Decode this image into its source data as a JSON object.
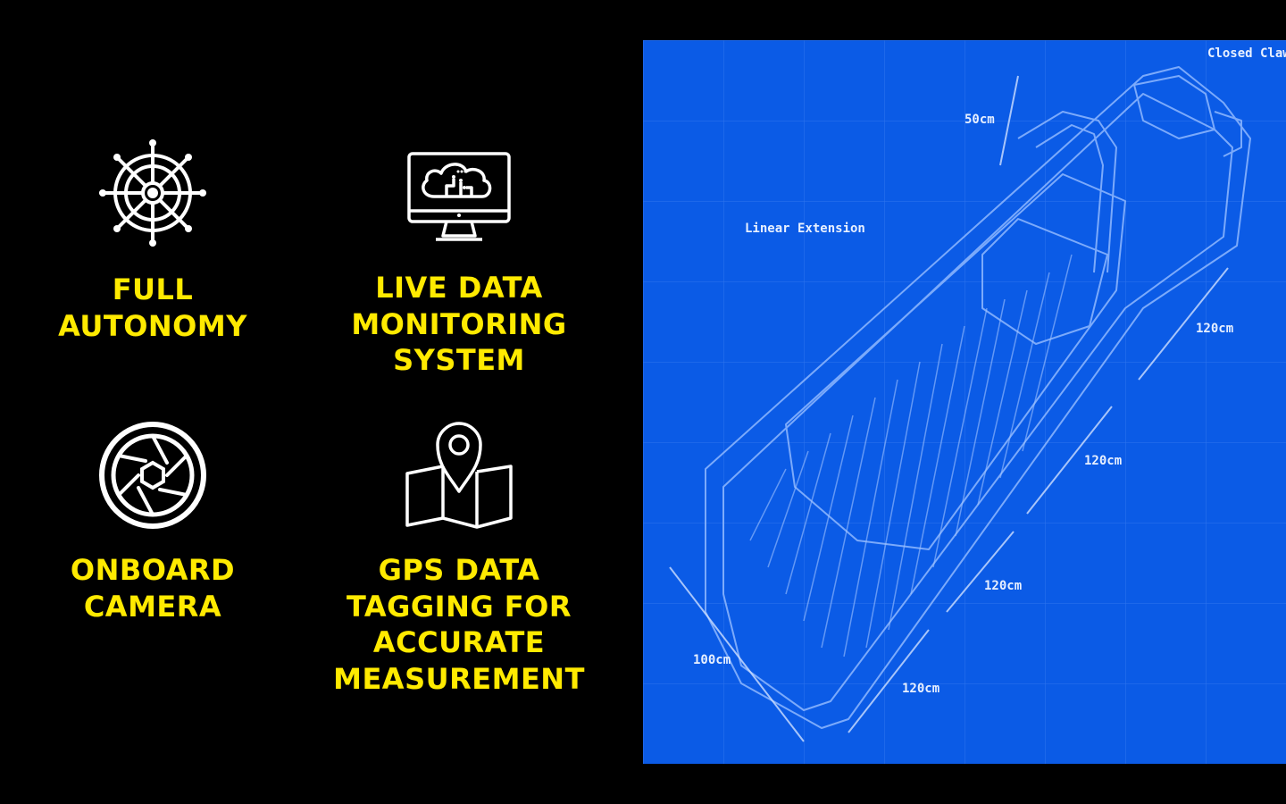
{
  "features": [
    {
      "label_line1": "FULL",
      "label_line2": "AUTONOMY",
      "icon": "ship-wheel-icon"
    },
    {
      "label_line1": "LIVE DATA",
      "label_line2": "MONITORING",
      "label_line3": "SYSTEM",
      "icon": "cloud-monitor-icon"
    },
    {
      "label_line1": "ONBOARD",
      "label_line2": "CAMERA",
      "icon": "camera-aperture-icon"
    },
    {
      "label_line1": "GPS DATA",
      "label_line2": "TAGGING FOR",
      "label_line3": "ACCURATE",
      "label_line4": "MEASUREMENT",
      "icon": "map-pin-icon"
    }
  ],
  "blueprint": {
    "closed_claws": "Closed Claws",
    "dim_50": "50cm",
    "linear_extension": "Linear Extension",
    "dim_120_a": "120cm",
    "dim_120_b": "120cm",
    "dim_120_c": "120cm",
    "dim_120_d": "120cm",
    "dim_100": "100cm"
  },
  "colors": {
    "background": "#000000",
    "accent": "#ffea00",
    "blueprint": "#0b5be6",
    "line": "#cfe0ff"
  }
}
